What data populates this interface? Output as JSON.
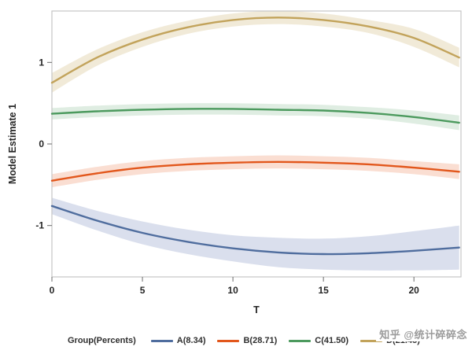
{
  "watermark": "知乎 @统计碎碎念",
  "chart_data": {
    "type": "line",
    "title": "",
    "xlabel": "T",
    "ylabel": "Model Estimate 1",
    "xlim": [
      0,
      22.6
    ],
    "ylim": [
      -1.63,
      1.63
    ],
    "xticks": [
      0,
      5,
      10,
      15,
      20
    ],
    "yticks": [
      -1,
      0,
      1
    ],
    "grid": false,
    "legend_title": "Group(Percents)",
    "legend_position": "bottom",
    "frame_color": "#c6c6c6",
    "tick_color": "#6b6b6b",
    "band_opacity": 0.45,
    "x": [
      0,
      2.5,
      5,
      7.5,
      10,
      12.5,
      15,
      17.5,
      20,
      22.5
    ],
    "series": [
      {
        "name": "A(8.34)",
        "color": "#4f6d9e",
        "band_color": "#aeb9d6",
        "y": [
          -0.76,
          -0.94,
          -1.09,
          -1.2,
          -1.28,
          -1.33,
          -1.35,
          -1.34,
          -1.31,
          -1.27
        ],
        "upper": [
          -0.66,
          -0.82,
          -0.95,
          -1.05,
          -1.12,
          -1.15,
          -1.16,
          -1.13,
          -1.07,
          -1.0
        ],
        "lower": [
          -0.86,
          -1.06,
          -1.23,
          -1.35,
          -1.44,
          -1.51,
          -1.54,
          -1.55,
          -1.55,
          -1.54
        ]
      },
      {
        "name": "B(28.71)",
        "color": "#e2571c",
        "band_color": "#f3b69c",
        "y": [
          -0.45,
          -0.36,
          -0.29,
          -0.25,
          -0.23,
          -0.22,
          -0.23,
          -0.25,
          -0.29,
          -0.34
        ],
        "upper": [
          -0.37,
          -0.28,
          -0.21,
          -0.17,
          -0.15,
          -0.14,
          -0.15,
          -0.17,
          -0.21,
          -0.25
        ],
        "lower": [
          -0.53,
          -0.44,
          -0.37,
          -0.33,
          -0.31,
          -0.3,
          -0.31,
          -0.33,
          -0.37,
          -0.43
        ]
      },
      {
        "name": "C(41.50)",
        "color": "#4c9a5e",
        "band_color": "#b7d8bf",
        "y": [
          0.37,
          0.4,
          0.42,
          0.43,
          0.43,
          0.42,
          0.41,
          0.38,
          0.33,
          0.26
        ],
        "upper": [
          0.44,
          0.47,
          0.49,
          0.5,
          0.5,
          0.49,
          0.48,
          0.45,
          0.41,
          0.35
        ],
        "lower": [
          0.3,
          0.33,
          0.35,
          0.36,
          0.36,
          0.35,
          0.34,
          0.31,
          0.25,
          0.17
        ]
      },
      {
        "name": "D(21.45)",
        "color": "#c2a35b",
        "band_color": "#e0d0a8",
        "y": [
          0.75,
          1.06,
          1.28,
          1.43,
          1.52,
          1.55,
          1.52,
          1.44,
          1.3,
          1.06
        ],
        "upper": [
          0.87,
          1.16,
          1.37,
          1.51,
          1.6,
          1.63,
          1.6,
          1.52,
          1.41,
          1.18
        ],
        "lower": [
          0.63,
          0.96,
          1.19,
          1.35,
          1.44,
          1.47,
          1.44,
          1.36,
          1.19,
          0.94
        ]
      }
    ]
  }
}
